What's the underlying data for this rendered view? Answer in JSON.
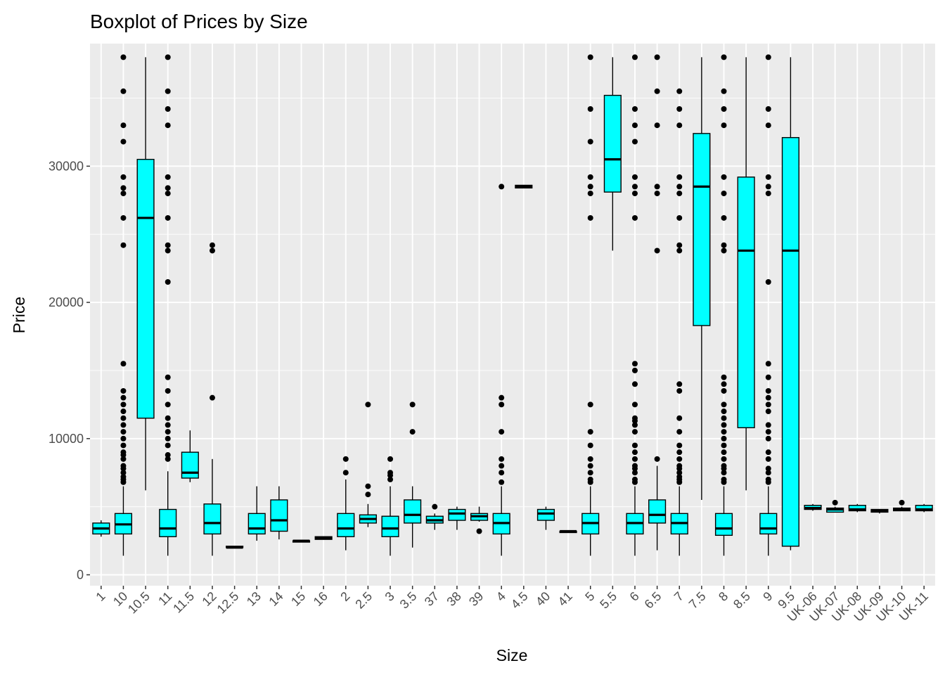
{
  "chart_data": {
    "type": "boxplot",
    "title": "Boxplot of Prices by Size",
    "xlabel": "Size",
    "ylabel": "Price",
    "ylim": [
      -800,
      39000
    ],
    "yticks": [
      0,
      10000,
      20000,
      30000
    ],
    "grid": true,
    "legend": "none",
    "box_fill": "#00FFFF",
    "box_stroke": "#000000",
    "panel_background": "#EBEBEB",
    "grid_color": "#FFFFFF",
    "categories": [
      "1",
      "10",
      "10.5",
      "11",
      "11.5",
      "12",
      "12.5",
      "13",
      "14",
      "15",
      "16",
      "2",
      "2.5",
      "3",
      "3.5",
      "37",
      "38",
      "39",
      "4",
      "4.5",
      "40",
      "41",
      "5",
      "5.5",
      "6",
      "6.5",
      "7",
      "7.5",
      "8",
      "8.5",
      "9",
      "9.5",
      "UK-06",
      "UK-07",
      "UK-08",
      "UK-09",
      "UK-10",
      "UK-11"
    ],
    "boxes": [
      {
        "min": 2800,
        "q1": 3000,
        "median": 3400,
        "q3": 3800,
        "max": 4000,
        "outliers": []
      },
      {
        "min": 1400,
        "q1": 3000,
        "median": 3700,
        "q3": 4500,
        "max": 6500,
        "outliers": [
          6800,
          7000,
          7200,
          7500,
          7800,
          8000,
          8500,
          8800,
          9000,
          9500,
          10000,
          10500,
          11000,
          11500,
          12000,
          12500,
          13000,
          13500,
          15500,
          24200,
          26200,
          28000,
          28400,
          29200,
          31800,
          33000,
          35500,
          38000
        ]
      },
      {
        "min": 6200,
        "q1": 11500,
        "median": 26200,
        "q3": 30500,
        "max": 38000,
        "outliers": []
      },
      {
        "min": 1400,
        "q1": 2800,
        "median": 3400,
        "q3": 4800,
        "max": 7600,
        "outliers": [
          8500,
          8800,
          9500,
          10000,
          10500,
          11000,
          11500,
          12500,
          13500,
          14500,
          21500,
          23800,
          24200,
          26200,
          28000,
          28400,
          29200,
          33000,
          34200,
          35500,
          38000
        ]
      },
      {
        "min": 6800,
        "q1": 7100,
        "median": 7500,
        "q3": 9000,
        "max": 10600,
        "outliers": []
      },
      {
        "min": 1400,
        "q1": 3000,
        "median": 3800,
        "q3": 5200,
        "max": 8500,
        "outliers": [
          13000,
          23800,
          24200
        ]
      },
      {
        "min": 2000,
        "q1": 2000,
        "median": 2000,
        "q3": 2100,
        "max": 2100,
        "outliers": []
      },
      {
        "min": 2500,
        "q1": 3000,
        "median": 3400,
        "q3": 4500,
        "max": 6500,
        "outliers": []
      },
      {
        "min": 2600,
        "q1": 3200,
        "median": 4000,
        "q3": 5500,
        "max": 6500,
        "outliers": []
      },
      {
        "min": 2400,
        "q1": 2400,
        "median": 2500,
        "q3": 2500,
        "max": 2500,
        "outliers": []
      },
      {
        "min": 2600,
        "q1": 2600,
        "median": 2700,
        "q3": 2800,
        "max": 2800,
        "outliers": []
      },
      {
        "min": 1800,
        "q1": 2800,
        "median": 3400,
        "q3": 4500,
        "max": 7000,
        "outliers": [
          7500,
          8500
        ]
      },
      {
        "min": 3500,
        "q1": 3800,
        "median": 4100,
        "q3": 4400,
        "max": 5200,
        "outliers": [
          5900,
          6500,
          12500
        ]
      },
      {
        "min": 1400,
        "q1": 2800,
        "median": 3400,
        "q3": 4300,
        "max": 6500,
        "outliers": [
          7000,
          7300,
          7500,
          8500
        ]
      },
      {
        "min": 2000,
        "q1": 3800,
        "median": 4400,
        "q3": 5500,
        "max": 6500,
        "outliers": [
          10500,
          12500
        ]
      },
      {
        "min": 3300,
        "q1": 3800,
        "median": 4000,
        "q3": 4300,
        "max": 4500,
        "outliers": [
          5000
        ]
      },
      {
        "min": 3300,
        "q1": 4000,
        "median": 4500,
        "q3": 4800,
        "max": 5000,
        "outliers": []
      },
      {
        "min": 3900,
        "q1": 4000,
        "median": 4300,
        "q3": 4500,
        "max": 5000,
        "outliers": [
          3200
        ]
      },
      {
        "min": 1400,
        "q1": 3000,
        "median": 3800,
        "q3": 4500,
        "max": 6500,
        "outliers": [
          6800,
          7500,
          8000,
          8500,
          10500,
          12500,
          13000,
          28500
        ]
      },
      {
        "min": 28400,
        "q1": 28400,
        "median": 28500,
        "q3": 28600,
        "max": 28600,
        "outliers": []
      },
      {
        "min": 3300,
        "q1": 4000,
        "median": 4500,
        "q3": 4800,
        "max": 5000,
        "outliers": []
      },
      {
        "min": 3100,
        "q1": 3100,
        "median": 3200,
        "q3": 3200,
        "max": 3200,
        "outliers": []
      },
      {
        "min": 1400,
        "q1": 3000,
        "median": 3800,
        "q3": 4500,
        "max": 6500,
        "outliers": [
          6800,
          7000,
          7500,
          8000,
          8500,
          9500,
          10500,
          12500,
          26200,
          28000,
          28500,
          29200,
          31800,
          34200,
          38000
        ]
      },
      {
        "min": 23800,
        "q1": 28100,
        "median": 30500,
        "q3": 35200,
        "max": 38000,
        "outliers": []
      },
      {
        "min": 1400,
        "q1": 3000,
        "median": 3800,
        "q3": 4500,
        "max": 6500,
        "outliers": [
          6800,
          7000,
          7500,
          7800,
          8000,
          8500,
          9000,
          9500,
          10500,
          11000,
          11300,
          11500,
          12500,
          14000,
          15000,
          15500,
          26200,
          28000,
          28500,
          29200,
          31800,
          33000,
          34200,
          38000
        ]
      },
      {
        "min": 1800,
        "q1": 3800,
        "median": 4400,
        "q3": 5500,
        "max": 8000,
        "outliers": [
          8500,
          23800,
          28000,
          28500,
          33000,
          35500,
          38000
        ]
      },
      {
        "min": 1400,
        "q1": 3000,
        "median": 3800,
        "q3": 4500,
        "max": 6500,
        "outliers": [
          6800,
          7000,
          7200,
          7500,
          7800,
          8000,
          8500,
          9000,
          9500,
          10500,
          11500,
          13500,
          14000,
          23800,
          24200,
          26200,
          28000,
          28500,
          29200,
          33000,
          34200,
          35500
        ]
      },
      {
        "min": 5500,
        "q1": 18300,
        "median": 28500,
        "q3": 32400,
        "max": 38000,
        "outliers": []
      },
      {
        "min": 1400,
        "q1": 2900,
        "median": 3400,
        "q3": 4500,
        "max": 6500,
        "outliers": [
          6800,
          7000,
          7500,
          7800,
          8000,
          8500,
          9000,
          9500,
          10000,
          10500,
          11000,
          11500,
          12000,
          12500,
          13500,
          14000,
          14500,
          23800,
          24200,
          26200,
          28000,
          29200,
          33000,
          34200,
          35500,
          38000
        ]
      },
      {
        "min": 6200,
        "q1": 10800,
        "median": 23800,
        "q3": 29200,
        "max": 38000,
        "outliers": []
      },
      {
        "min": 1400,
        "q1": 3000,
        "median": 3400,
        "q3": 4500,
        "max": 6500,
        "outliers": [
          6800,
          7000,
          7500,
          7800,
          8500,
          9000,
          10000,
          10500,
          11000,
          12000,
          12500,
          13000,
          13500,
          14500,
          15500,
          21500,
          28000,
          28500,
          29200,
          33000,
          34200,
          38000
        ]
      },
      {
        "min": 1800,
        "q1": 2100,
        "median": 23800,
        "q3": 32100,
        "max": 38000,
        "outliers": []
      },
      {
        "min": 4700,
        "q1": 4800,
        "median": 4900,
        "q3": 5100,
        "max": 5200,
        "outliers": []
      },
      {
        "min": 4600,
        "q1": 4600,
        "median": 4800,
        "q3": 4900,
        "max": 5000,
        "outliers": [
          5300
        ]
      },
      {
        "min": 4600,
        "q1": 4700,
        "median": 4800,
        "q3": 5100,
        "max": 5200,
        "outliers": []
      },
      {
        "min": 4500,
        "q1": 4600,
        "median": 4700,
        "q3": 4800,
        "max": 4800,
        "outliers": []
      },
      {
        "min": 4700,
        "q1": 4700,
        "median": 4800,
        "q3": 4900,
        "max": 5000,
        "outliers": [
          5300
        ]
      },
      {
        "min": 4600,
        "q1": 4700,
        "median": 4800,
        "q3": 5100,
        "max": 5200,
        "outliers": []
      }
    ]
  }
}
